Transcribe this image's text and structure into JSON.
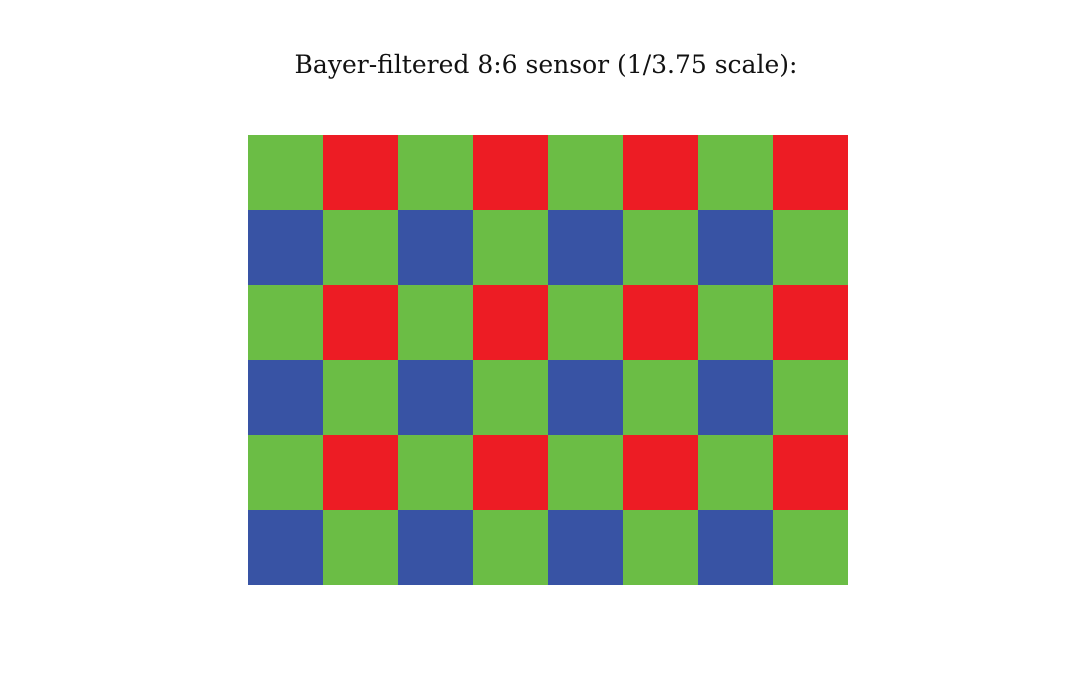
{
  "title": "Bayer-filtered 8:6 sensor (1/3.75 scale):",
  "sensor": {
    "columns": 8,
    "rows": 6,
    "colors": {
      "R": "#ed1c24",
      "G": "#6bbd45",
      "B": "#3853a4"
    },
    "pattern": [
      [
        "G",
        "R",
        "G",
        "R",
        "G",
        "R",
        "G",
        "R"
      ],
      [
        "B",
        "G",
        "B",
        "G",
        "B",
        "G",
        "B",
        "G"
      ],
      [
        "G",
        "R",
        "G",
        "R",
        "G",
        "R",
        "G",
        "R"
      ],
      [
        "B",
        "G",
        "B",
        "G",
        "B",
        "G",
        "B",
        "G"
      ],
      [
        "G",
        "R",
        "G",
        "R",
        "G",
        "R",
        "G",
        "R"
      ],
      [
        "B",
        "G",
        "B",
        "G",
        "B",
        "G",
        "B",
        "G"
      ]
    ]
  }
}
